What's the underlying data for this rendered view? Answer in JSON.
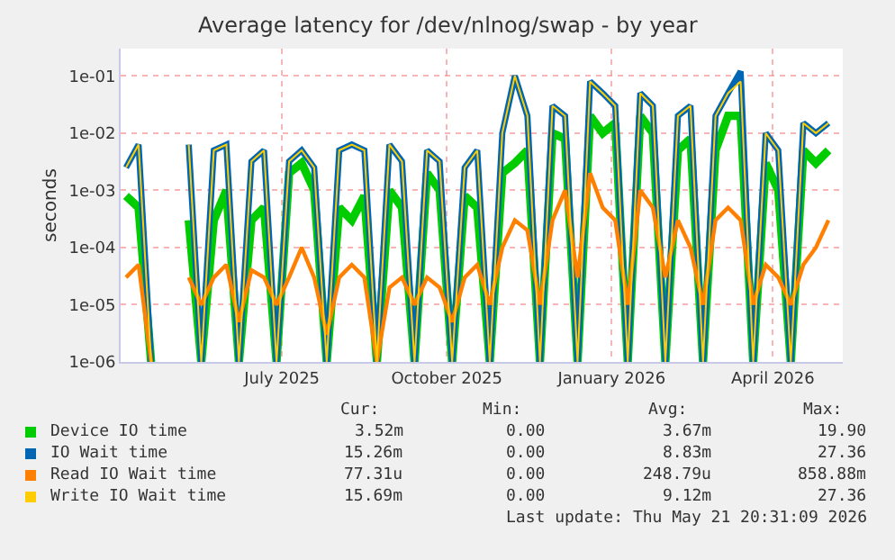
{
  "chart_data": {
    "type": "line",
    "title": "Average latency for /dev/nlnog/swap - by year",
    "ylabel": "seconds",
    "log": "y",
    "grid": true,
    "legend": "bottom",
    "marker": "none",
    "line_style": "solid",
    "ylim": [
      1e-06,
      0.3
    ],
    "yticks": [
      {
        "value": 1e-06,
        "label": "1e-06"
      },
      {
        "value": 1e-05,
        "label": "1e-05"
      },
      {
        "value": 0.0001,
        "label": "1e-04"
      },
      {
        "value": 0.001,
        "label": "1e-03"
      },
      {
        "value": 0.01,
        "label": "1e-02"
      },
      {
        "value": 0.1,
        "label": "1e-01"
      }
    ],
    "xlim": [
      "2025-04-02",
      "2026-05-10"
    ],
    "xticks": [
      {
        "value": "2025-07-01",
        "label": "July 2025"
      },
      {
        "value": "2025-10-01",
        "label": "October 2025"
      },
      {
        "value": "2026-01-01",
        "label": "January 2026"
      },
      {
        "value": "2026-04-01",
        "label": "April 2026"
      }
    ],
    "x": [
      "2025-04-05",
      "2025-04-12",
      "2025-04-19",
      "2025-04-26",
      "2025-05-03",
      "2025-05-10",
      "2025-05-17",
      "2025-05-24",
      "2025-05-31",
      "2025-06-07",
      "2025-06-14",
      "2025-06-21",
      "2025-06-28",
      "2025-07-05",
      "2025-07-12",
      "2025-07-19",
      "2025-07-26",
      "2025-08-02",
      "2025-08-09",
      "2025-08-16",
      "2025-08-23",
      "2025-08-30",
      "2025-09-06",
      "2025-09-13",
      "2025-09-20",
      "2025-09-27",
      "2025-10-04",
      "2025-10-11",
      "2025-10-18",
      "2025-10-25",
      "2025-11-01",
      "2025-11-08",
      "2025-11-15",
      "2025-11-22",
      "2025-11-29",
      "2025-12-06",
      "2025-12-13",
      "2025-12-20",
      "2025-12-27",
      "2026-01-03",
      "2026-01-10",
      "2026-01-17",
      "2026-01-24",
      "2026-01-31",
      "2026-02-07",
      "2026-02-14",
      "2026-02-21",
      "2026-02-28",
      "2026-03-07",
      "2026-03-14",
      "2026-03-21",
      "2026-03-28",
      "2026-04-04",
      "2026-04-11",
      "2026-04-18",
      "2026-04-25",
      "2026-05-02"
    ],
    "series": [
      {
        "name": "Device IO time",
        "color": "#00cc00",
        "values": [
          0.0008,
          0.0005,
          1e-06,
          null,
          null,
          0.0003,
          1e-06,
          0.0003,
          0.001,
          1e-06,
          0.0003,
          0.0005,
          1e-06,
          0.002,
          0.003,
          0.001,
          1e-06,
          0.0005,
          0.0003,
          0.0008,
          1e-06,
          0.001,
          0.0005,
          1e-06,
          0.002,
          0.001,
          1e-06,
          0.0008,
          0.0005,
          1e-06,
          0.002,
          0.003,
          0.005,
          1e-06,
          0.01,
          0.008,
          1e-06,
          0.02,
          0.01,
          0.015,
          1e-06,
          0.02,
          0.01,
          1e-06,
          0.005,
          0.008,
          1e-06,
          0.005,
          0.02,
          0.02,
          1e-06,
          0.003,
          0.001,
          1e-06,
          0.005,
          0.003,
          0.005
        ]
      },
      {
        "name": "IO Wait time",
        "color": "#0066b3",
        "values": [
          0.0025,
          0.0063,
          1e-06,
          null,
          null,
          0.0063,
          1e-06,
          0.005,
          0.0063,
          1e-06,
          0.0032,
          0.005,
          1e-06,
          0.0032,
          0.005,
          0.0025,
          1e-06,
          0.005,
          0.0063,
          0.005,
          1e-06,
          0.0063,
          0.0032,
          1e-06,
          0.005,
          0.0032,
          1e-06,
          0.0025,
          0.005,
          1e-06,
          0.01,
          0.1,
          0.02,
          1e-06,
          0.03,
          0.02,
          1e-06,
          0.08,
          0.05,
          0.03,
          1e-06,
          0.05,
          0.03,
          1e-06,
          0.02,
          0.03,
          1e-06,
          0.02,
          0.05,
          0.12,
          1e-06,
          0.01,
          0.005,
          1e-06,
          0.015,
          0.01,
          0.015
        ]
      },
      {
        "name": "Read IO Wait time",
        "color": "#ff8000",
        "values": [
          3e-05,
          5e-05,
          1e-06,
          null,
          null,
          3e-05,
          1e-05,
          3e-05,
          5e-05,
          5e-06,
          4e-05,
          3e-05,
          1e-05,
          3e-05,
          0.0001,
          3e-05,
          3e-06,
          3e-05,
          5e-05,
          3e-05,
          1e-06,
          2e-05,
          3e-05,
          1e-05,
          3e-05,
          2e-05,
          5e-06,
          3e-05,
          5e-05,
          1e-05,
          0.0001,
          0.0003,
          0.0002,
          1e-05,
          0.0003,
          0.001,
          3e-05,
          0.002,
          0.0005,
          0.0003,
          1e-05,
          0.001,
          0.0005,
          3e-05,
          0.0003,
          0.0001,
          1e-05,
          0.0003,
          0.0005,
          0.0003,
          1e-05,
          5e-05,
          3e-05,
          1e-05,
          5e-05,
          0.0001,
          0.0003
        ]
      },
      {
        "name": "Write IO Wait time",
        "color": "#ffcc00",
        "values": [
          0.0025,
          0.0063,
          1e-06,
          null,
          null,
          0.0063,
          1e-06,
          0.005,
          0.0063,
          1e-06,
          0.0032,
          0.005,
          1e-06,
          0.0032,
          0.005,
          0.0025,
          1e-06,
          0.005,
          0.0063,
          0.005,
          1e-06,
          0.0063,
          0.0032,
          1e-06,
          0.005,
          0.0032,
          1e-06,
          0.0025,
          0.005,
          1e-06,
          0.01,
          0.1,
          0.02,
          1e-06,
          0.03,
          0.02,
          1e-06,
          0.08,
          0.05,
          0.03,
          1e-06,
          0.05,
          0.03,
          1e-06,
          0.02,
          0.03,
          1e-06,
          0.02,
          0.05,
          0.08,
          1e-06,
          0.01,
          0.005,
          1e-06,
          0.015,
          0.01,
          0.015
        ]
      }
    ],
    "annotations": [
      "Cur:",
      "Min:",
      "Avg:",
      "Max:",
      "3.52m",
      "0.00",
      "3.67m",
      "19.90",
      "15.26m",
      "0.00",
      "8.83m",
      "27.36",
      "77.31u",
      "0.00",
      "248.79u",
      "858.88m",
      "15.69m",
      "0.00",
      "9.12m",
      "27.36",
      "Last update: Thu May 21 20:31:09 2026"
    ]
  }
}
